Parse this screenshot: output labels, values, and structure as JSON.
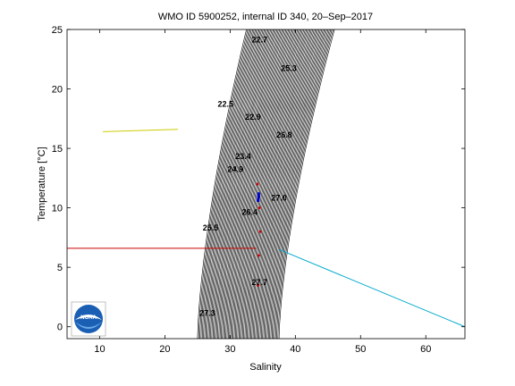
{
  "chart_data": {
    "type": "scatter",
    "title": "WMO ID 5900252, internal ID 340, 20–Sep–2017",
    "xlabel": "Salinity",
    "ylabel": "Temperature [°C]",
    "xlim": [
      5,
      66
    ],
    "ylim": [
      -1,
      25
    ],
    "xticks": [
      10,
      20,
      30,
      40,
      50,
      60
    ],
    "yticks": [
      0,
      5,
      10,
      15,
      20,
      25
    ],
    "grid": false,
    "density_isopleths": {
      "description_visible": "dense black sigma contour lines forming a curved band",
      "bottom_salinity_range": [
        25,
        37.5
      ],
      "top_salinity_range": [
        32.5,
        46
      ],
      "line_count": 70
    },
    "contour_labels": [
      {
        "text": "22.7",
        "s": 34.5,
        "t": 23.9
      },
      {
        "text": "25.3",
        "s": 39.0,
        "t": 21.5
      },
      {
        "text": "22.5",
        "s": 29.3,
        "t": 18.5
      },
      {
        "text": "22.9",
        "s": 33.5,
        "t": 17.4
      },
      {
        "text": "26.8",
        "s": 38.3,
        "t": 15.9
      },
      {
        "text": "23.4",
        "s": 32.0,
        "t": 14.1
      },
      {
        "text": "24.9",
        "s": 30.8,
        "t": 13.0
      },
      {
        "text": "27.0",
        "s": 37.5,
        "t": 10.6
      },
      {
        "text": "26.4",
        "s": 33.0,
        "t": 9.4
      },
      {
        "text": "25.5",
        "s": 27.0,
        "t": 8.1
      },
      {
        "text": "27.7",
        "s": 34.5,
        "t": 3.5
      },
      {
        "text": "27.3",
        "s": 26.5,
        "t": 0.9
      }
    ],
    "series": [
      {
        "color": "#cccc00",
        "x": [
          10.5,
          22.0
        ],
        "y": [
          16.4,
          16.6
        ]
      },
      {
        "color": "#cc0000",
        "x": [
          5.0,
          34.0
        ],
        "y": [
          6.6,
          6.6
        ]
      },
      {
        "color": "#00aacc",
        "x": [
          37.5,
          66.0
        ],
        "y": [
          6.5,
          0.0
        ]
      },
      {
        "color": "#0000cc",
        "x": [
          34.3,
          34.4
        ],
        "y": [
          10.5,
          11.3
        ]
      }
    ],
    "profile_points": {
      "x": [
        34.2,
        34.5,
        34.6,
        34.4,
        34.3
      ],
      "y": [
        12.0,
        10.0,
        8.0,
        6.0,
        3.5
      ]
    },
    "logo_text": "NOAA"
  }
}
